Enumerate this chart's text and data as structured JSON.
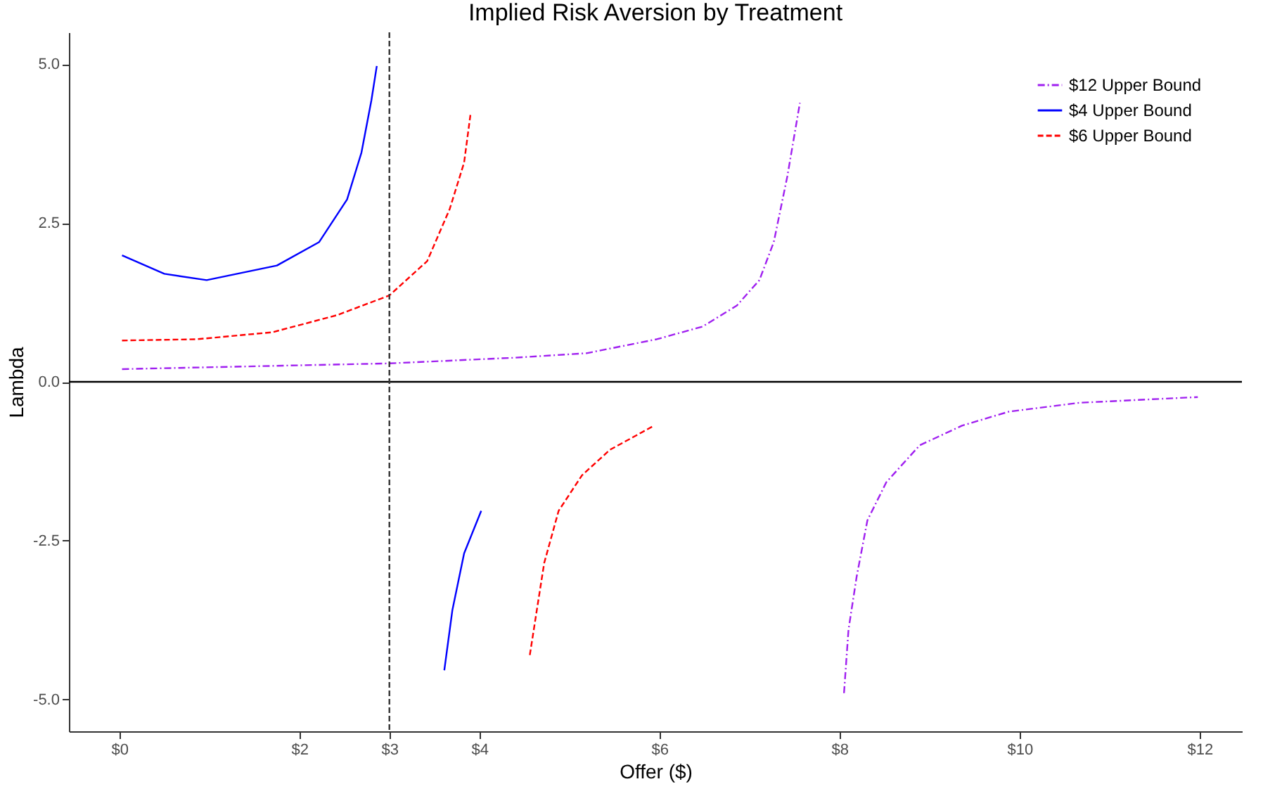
{
  "chart_data": {
    "type": "line",
    "title": "Implied Risk Aversion by Treatment",
    "xlabel": "Offer ($)",
    "ylabel": "Lambda",
    "xlim": [
      -0.56,
      12.47
    ],
    "ylim": [
      -5.5,
      5.5
    ],
    "xticks": [
      {
        "value": 0,
        "label": "$0"
      },
      {
        "value": 2,
        "label": "$2"
      },
      {
        "value": 3,
        "label": "$3"
      },
      {
        "value": 4,
        "label": "$4"
      },
      {
        "value": 6,
        "label": "$6"
      },
      {
        "value": 8,
        "label": "$8"
      },
      {
        "value": 10,
        "label": "$10"
      },
      {
        "value": 12,
        "label": "$12"
      }
    ],
    "yticks": [
      {
        "value": -5,
        "label": "-5.0"
      },
      {
        "value": -2.5,
        "label": "-2.5"
      },
      {
        "value": 0,
        "label": "0.0"
      },
      {
        "value": 2.5,
        "label": "2.5"
      },
      {
        "value": 5,
        "label": "5.0"
      }
    ],
    "series": [
      {
        "name": "$12 Upper Bound",
        "color": "#a020f0",
        "line_style": "dashdot",
        "x": [
          0.03,
          3,
          4.4,
          5.19,
          5.97,
          6.48,
          6.86,
          7.11,
          7.27,
          7.42,
          7.56,
          7.8,
          8.05,
          8.1,
          8.19,
          8.31,
          8.52,
          8.89,
          9.36,
          9.88,
          10.66,
          11.98
        ],
        "values": [
          0.2,
          0.29,
          0.38,
          0.45,
          0.67,
          0.87,
          1.2,
          1.6,
          2.2,
          3.23,
          4.39,
          null,
          -4.9,
          -3.9,
          -3.07,
          -2.18,
          -1.58,
          -1.0,
          -0.69,
          -0.47,
          -0.33,
          -0.24
        ]
      },
      {
        "name": "$4 Upper Bound",
        "color": "#0000ff",
        "line_style": "solid",
        "x": [
          0.03,
          0.5,
          0.97,
          1.75,
          2.22,
          2.53,
          2.69,
          2.8,
          2.86,
          3.2,
          3.61,
          3.7,
          3.83,
          4.02
        ],
        "values": [
          1.99,
          1.7,
          1.6,
          1.83,
          2.2,
          2.87,
          3.61,
          4.43,
          4.97,
          null,
          -4.54,
          -3.59,
          -2.7,
          -2.03
        ]
      },
      {
        "name": "$6 Upper Bound",
        "color": "#ff0000",
        "line_style": "dashed",
        "x": [
          0.03,
          0.86,
          1.7,
          2.42,
          3.0,
          3.42,
          3.67,
          3.83,
          3.9,
          4.2,
          4.56,
          4.67,
          4.72,
          4.88,
          5.14,
          5.45,
          5.94
        ],
        "values": [
          0.65,
          0.67,
          0.78,
          1.05,
          1.36,
          1.9,
          2.72,
          3.45,
          4.2,
          null,
          -4.3,
          -3.3,
          -2.85,
          -2.03,
          -1.47,
          -1.07,
          -0.69
        ]
      }
    ],
    "ref_lines": [
      {
        "axis": "y",
        "value": 0,
        "color": "#000000",
        "line_style": "solid"
      },
      {
        "axis": "x",
        "value": 3,
        "color": "#333333",
        "line_style": "dashed"
      }
    ],
    "legend": "top right",
    "grid": false
  }
}
